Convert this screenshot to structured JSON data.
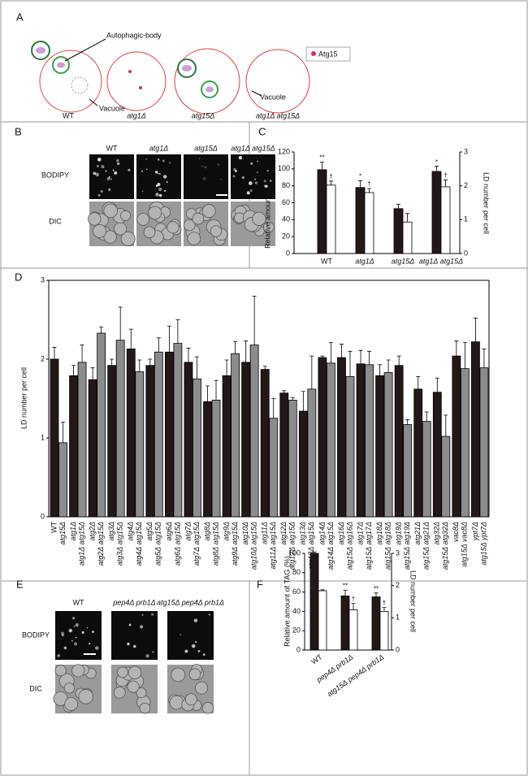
{
  "panel_labels": [
    "A",
    "B",
    "C",
    "D",
    "E",
    "F"
  ],
  "diagram": {
    "callout": "Autophagic-body",
    "vacuole_labels": [
      "Vacuole",
      "Vacuole"
    ],
    "strains": [
      "WT",
      "atg1Δ",
      "atg15Δ",
      "atg1Δ atg15Δ"
    ],
    "legend": "Atg15"
  },
  "micrographs_b": {
    "columns": [
      "WT",
      "atg1Δ",
      "atg15Δ",
      "atg1Δ atg15Δ"
    ],
    "rows": [
      "BODIPY",
      "DIC"
    ]
  },
  "micrographs_e": {
    "columns": [
      "WT",
      "pep4Δ prb1Δ",
      "atg15Δ pep4Δ prb1Δ"
    ],
    "rows": [
      "BODIPY",
      "DIC"
    ]
  },
  "chart_data": [
    {
      "type": "bar",
      "categories": [
        "WT",
        "atg1Δ",
        "atg15Δ",
        "atg1Δ atg15Δ"
      ],
      "ylabel": "Relative amount of TAG (%)",
      "y2label": "LD number per cell",
      "ylim": [
        0,
        120
      ],
      "yticks": [
        0,
        20,
        40,
        60,
        80,
        100,
        120
      ],
      "y2lim": [
        0,
        3
      ],
      "y2ticks": [
        0,
        1,
        2,
        3
      ],
      "series": [
        {
          "color": "#231815",
          "values": [
            99,
            78,
            53,
            97
          ],
          "errors": [
            9,
            8,
            5,
            6
          ],
          "annotations": [
            "**",
            "*",
            null,
            "*"
          ]
        },
        {
          "color": "#ffffff",
          "axis": "y2",
          "values": [
            2.02,
            1.8,
            0.93,
            1.97
          ],
          "errors": [
            0.12,
            0.12,
            0.25,
            0.2
          ],
          "annotations": [
            "†",
            "†",
            null,
            "†"
          ]
        }
      ]
    },
    {
      "type": "bar",
      "ylabel": "LD number per cell",
      "ylim": [
        0,
        3
      ],
      "yticks": [
        0,
        1,
        2,
        3
      ],
      "bar_colors": [
        "#231815",
        "#8c8c8c"
      ],
      "categories": [
        "WT",
        "atg15Δ",
        "atg1Δ",
        "atg1Δ atg15Δ",
        "atg2Δ",
        "atg2Δ atg15Δ",
        "atg3Δ",
        "atg3Δ atg15Δ",
        "atg4Δ",
        "atg4Δ atg15Δ",
        "atg5Δ",
        "atg5Δ atg15Δ",
        "atg6Δ",
        "atg6Δ atg15Δ",
        "atg7Δ",
        "atg7Δ atg15Δ",
        "atg8Δ",
        "atg8Δ atg15Δ",
        "atg9Δ",
        "atg9Δ atg15Δ",
        "atg10Δ",
        "atg10Δ atg15Δ",
        "atg11Δ",
        "atg11Δ atg15Δ",
        "atg12Δ",
        "atg12Δ atg15Δ",
        "atg13Δ",
        "atg13Δ atg15Δ",
        "atg14Δ",
        "atg14Δ atg15Δ",
        "atg16Δ",
        "atg15Δ atg16Δ",
        "atg17Δ",
        "atg15Δ atg17Δ",
        "atg18Δ",
        "atg15Δ atg18Δ",
        "atg19Δ",
        "atg15Δ atg19Δ",
        "atg21Δ",
        "atg15Δ atg21Δ",
        "atg32Δ",
        "atg15Δ atg32Δ",
        "vac8Δ",
        "atg15Δ vac8Δ",
        "ypt7Δ",
        "atg15Δ ypt7Δ"
      ],
      "values": [
        2.0,
        0.94,
        1.79,
        1.96,
        1.74,
        2.33,
        1.92,
        2.24,
        2.13,
        1.84,
        1.92,
        2.09,
        2.09,
        2.2,
        1.96,
        1.75,
        1.46,
        1.48,
        1.79,
        2.07,
        1.96,
        2.18,
        1.87,
        1.25,
        1.57,
        1.48,
        1.34,
        1.62,
        2.02,
        1.95,
        2.02,
        1.78,
        1.94,
        1.93,
        1.79,
        1.83,
        1.92,
        1.17,
        1.62,
        1.21,
        1.58,
        1.02,
        2.04,
        1.88,
        2.22,
        1.89
      ],
      "errors": [
        0.15,
        0.26,
        0.13,
        0.22,
        0.15,
        0.08,
        0.08,
        0.42,
        0.25,
        0.15,
        0.08,
        0.18,
        0.33,
        0.3,
        0.18,
        0.28,
        0.2,
        0.25,
        0.2,
        0.15,
        0.27,
        0.62,
        0.04,
        0.25,
        0.03,
        0.03,
        0.25,
        0.42,
        0.02,
        0.26,
        0.17,
        0.32,
        0.17,
        0.17,
        0.14,
        0.16,
        0.12,
        0.06,
        0.16,
        0.12,
        0.18,
        0.27,
        0.19,
        0.33,
        0.3,
        0.24
      ]
    },
    {
      "type": "bar",
      "categories": [
        "WT",
        "pep4Δ prb1Δ",
        "atg15Δ pep4Δ prb1Δ"
      ],
      "ylabel": "Relative amount of TAG (%)",
      "y2label": "LD number per cell",
      "ylim": [
        0,
        100
      ],
      "yticks": [
        0,
        20,
        40,
        60,
        80,
        100
      ],
      "y2lim": [
        0,
        3
      ],
      "y2ticks": [
        0,
        1,
        2,
        3
      ],
      "series": [
        {
          "color": "#231815",
          "values": [
            100,
            56,
            55
          ],
          "errors": [
            1.5,
            6,
            4
          ],
          "annotations": [
            null,
            "**",
            "**"
          ]
        },
        {
          "color": "#ffffff",
          "axis": "y2",
          "values": [
            1.84,
            1.25,
            1.2
          ],
          "errors": [
            0.03,
            0.2,
            0.12
          ],
          "annotations": [
            null,
            "†",
            "†"
          ]
        }
      ]
    }
  ]
}
